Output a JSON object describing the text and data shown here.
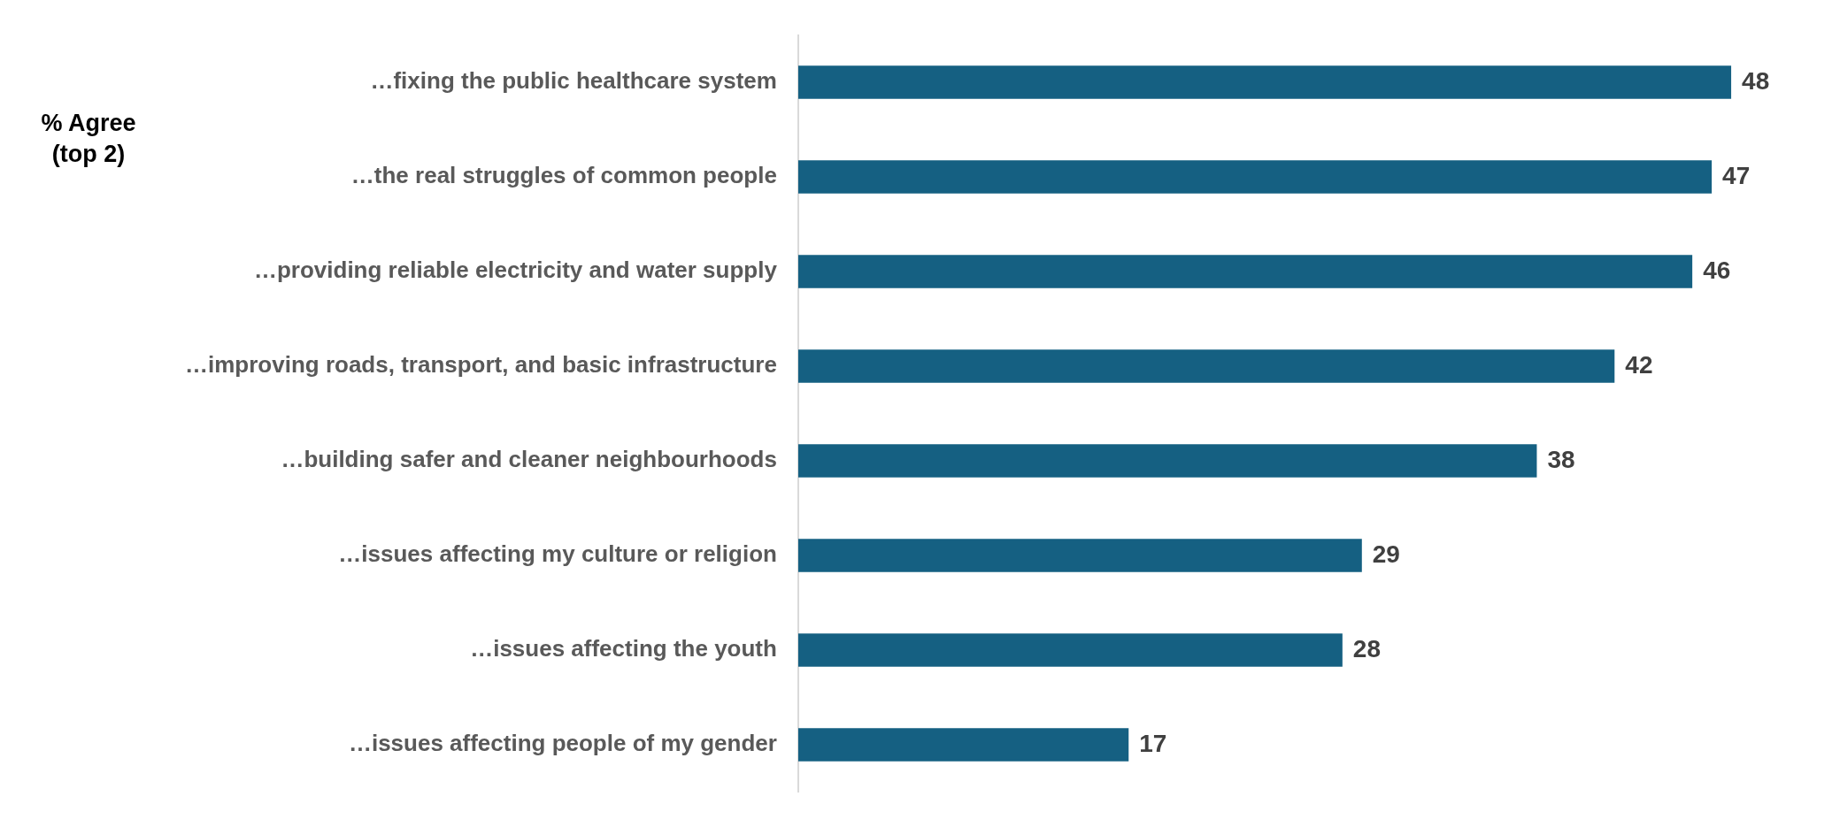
{
  "chart_data": {
    "type": "bar",
    "orientation": "horizontal",
    "ylabel": "% Agree\n(top 2)",
    "categories": [
      "…fixing the public healthcare system",
      "…the real struggles of common people",
      "…providing reliable electricity and water supply",
      "…improving roads, transport, and basic infrastructure",
      "…building safer and cleaner neighbourhoods",
      "…issues affecting my culture or religion",
      "…issues affecting the youth",
      "…issues affecting people of my gender"
    ],
    "values": [
      48,
      47,
      46,
      42,
      38,
      29,
      28,
      17
    ],
    "color": "#156082",
    "data_labels": true,
    "legend": false
  }
}
